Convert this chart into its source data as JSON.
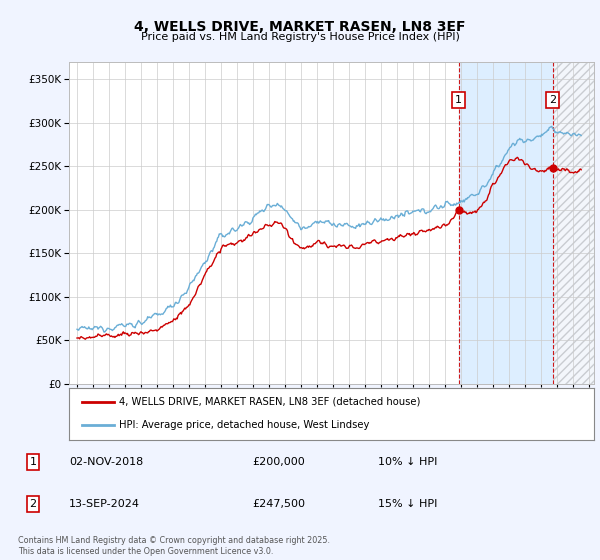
{
  "title": "4, WELLS DRIVE, MARKET RASEN, LN8 3EF",
  "subtitle": "Price paid vs. HM Land Registry's House Price Index (HPI)",
  "ylim": [
    0,
    370000
  ],
  "xlim_start": 1994.5,
  "xlim_end": 2027.3,
  "hpi_color": "#6aaed6",
  "price_color": "#cc0000",
  "marker1_date": 2018.84,
  "marker2_date": 2024.71,
  "marker1_price": 200000,
  "marker2_price": 247500,
  "legend_entry1": "4, WELLS DRIVE, MARKET RASEN, LN8 3EF (detached house)",
  "legend_entry2": "HPI: Average price, detached house, West Lindsey",
  "footnote": "Contains HM Land Registry data © Crown copyright and database right 2025.\nThis data is licensed under the Open Government Licence v3.0.",
  "background_color": "#f0f4ff",
  "plot_bg_color": "#ffffff",
  "grid_color": "#cccccc",
  "shaded_region_color": "#ddeeff",
  "hatch_color": "#cccccc"
}
